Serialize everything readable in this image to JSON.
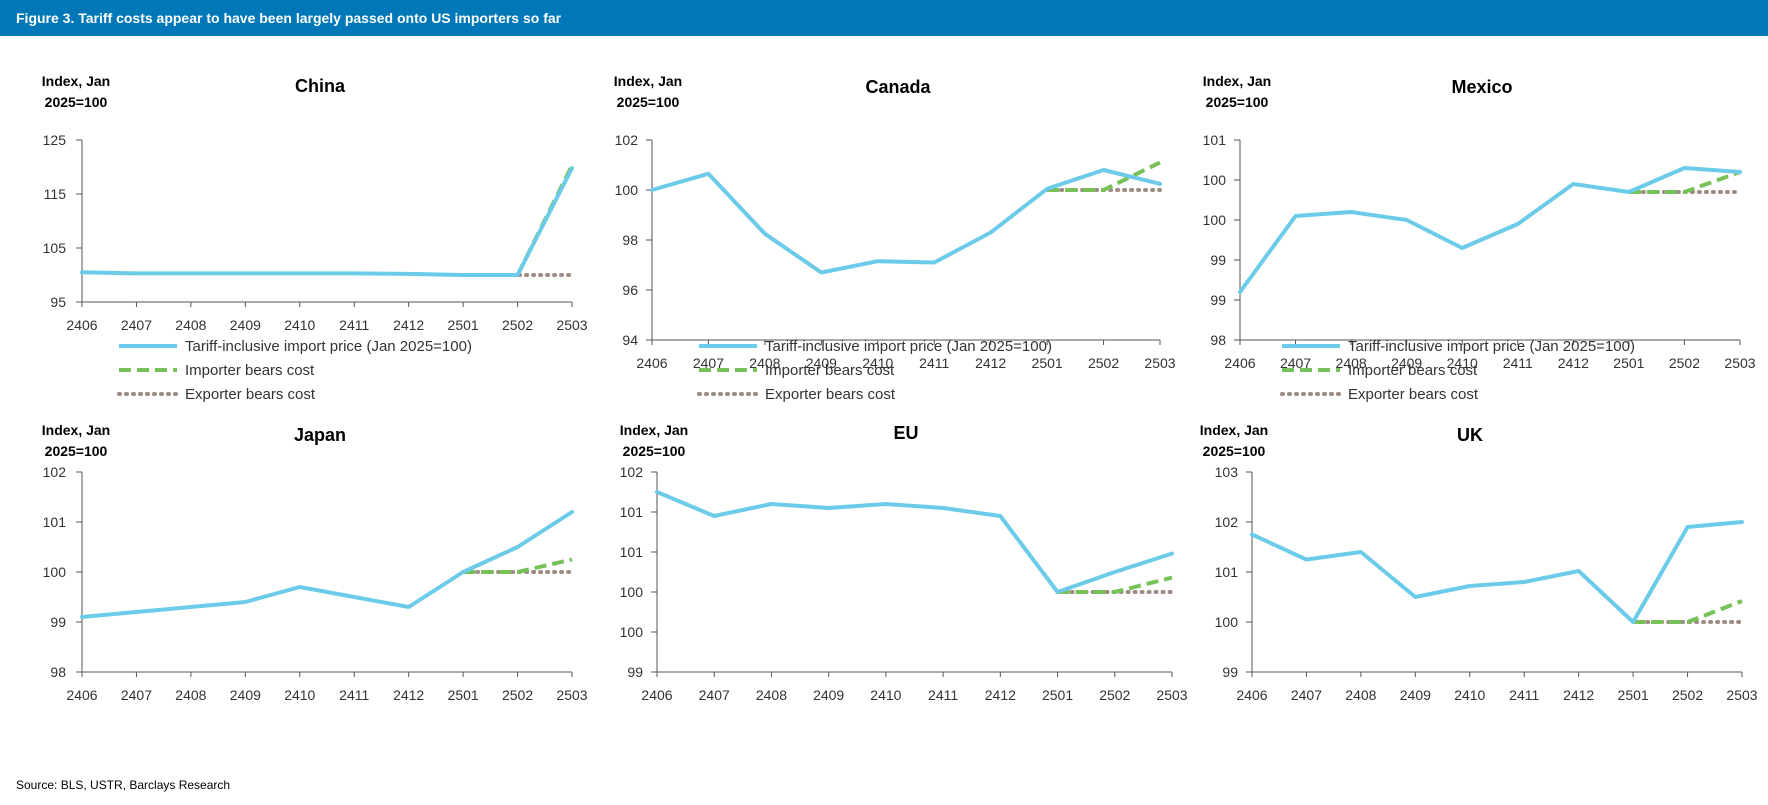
{
  "figure_title": "Figure 3. Tariff costs appear to have been largely passed onto US importers so far",
  "source": "Source: BLS, USTR, Barclays Research",
  "colors": {
    "header": "#0077b6",
    "tariff": "#6ccbe8",
    "importer": "#77c159",
    "exporter": "#9e8c84",
    "axis": "#555555"
  },
  "legend": [
    "Tariff-inclusive import price (Jan 2025=100)",
    "Importer bears cost",
    "Exporter bears cost"
  ],
  "chart_data": [
    {
      "type": "line",
      "title": "China",
      "ylabel_line1": "Index, Jan",
      "ylabel_line2": "2025=100",
      "categories": [
        "2406",
        "2407",
        "2408",
        "2409",
        "2410",
        "2411",
        "2412",
        "2501",
        "2502",
        "2503"
      ],
      "yticks": [
        "95",
        "105",
        "115",
        "125"
      ],
      "ylim": [
        95,
        125
      ],
      "series": [
        {
          "name": "Tariff-inclusive import price (Jan 2025=100)",
          "x": [
            "2406",
            "2407",
            "2408",
            "2409",
            "2410",
            "2411",
            "2412",
            "2501",
            "2502",
            "2503"
          ],
          "values": [
            100.5,
            100.3,
            100.3,
            100.3,
            100.3,
            100.3,
            100.2,
            100.0,
            100.0,
            119.8
          ]
        },
        {
          "name": "Importer bears cost",
          "x": [
            "2501",
            "2502",
            "2503"
          ],
          "values": [
            100.0,
            100.0,
            120.3
          ]
        },
        {
          "name": "Exporter bears cost",
          "x": [
            "2501",
            "2502",
            "2503"
          ],
          "values": [
            100.0,
            100.0,
            100.0
          ]
        }
      ]
    },
    {
      "type": "line",
      "title": "Canada",
      "ylabel_line1": "Index, Jan",
      "ylabel_line2": "2025=100",
      "categories": [
        "2406",
        "2407",
        "2408",
        "2409",
        "2410",
        "2411",
        "2412",
        "2501",
        "2502",
        "2503"
      ],
      "yticks": [
        "94",
        "96",
        "98",
        "100",
        "102"
      ],
      "ylim": [
        94,
        102
      ],
      "series": [
        {
          "name": "Tariff-inclusive import price (Jan 2025=100)",
          "x": [
            "2406",
            "2407",
            "2408",
            "2409",
            "2410",
            "2411",
            "2412",
            "2501",
            "2502",
            "2503"
          ],
          "values": [
            100.0,
            100.65,
            98.25,
            96.7,
            97.15,
            97.1,
            98.3,
            100.05,
            100.8,
            100.25
          ]
        },
        {
          "name": "Importer bears cost",
          "x": [
            "2501",
            "2502",
            "2503"
          ],
          "values": [
            100.0,
            100.0,
            101.1
          ]
        },
        {
          "name": "Exporter bears cost",
          "x": [
            "2501",
            "2502",
            "2503"
          ],
          "values": [
            100.0,
            100.0,
            100.0
          ]
        }
      ]
    },
    {
      "type": "line",
      "title": "Mexico",
      "ylabel_line1": "Index, Jan",
      "ylabel_line2": "2025=100",
      "categories": [
        "2406",
        "2407",
        "2408",
        "2409",
        "2410",
        "2411",
        "2412",
        "2501",
        "2502",
        "2503"
      ],
      "yticks": [
        "98",
        "99",
        "99",
        "100",
        "100",
        "101"
      ],
      "ylim": [
        98,
        100.5
      ],
      "series": [
        {
          "name": "Tariff-inclusive import price (Jan 2025=100)",
          "x": [
            "2406",
            "2407",
            "2408",
            "2409",
            "2410",
            "2411",
            "2412",
            "2501",
            "2502",
            "2503"
          ],
          "values": [
            98.6,
            99.55,
            99.6,
            99.5,
            99.15,
            99.45,
            99.95,
            99.85,
            100.15,
            100.1
          ]
        },
        {
          "name": "Importer bears cost",
          "x": [
            "2501",
            "2502",
            "2503"
          ],
          "values": [
            99.85,
            99.85,
            100.1
          ]
        },
        {
          "name": "Exporter bears cost",
          "x": [
            "2501",
            "2502",
            "2503"
          ],
          "values": [
            99.85,
            99.85,
            99.85
          ]
        }
      ]
    },
    {
      "type": "line",
      "title": "Japan",
      "ylabel_line1": "Index, Jan",
      "ylabel_line2": "2025=100",
      "categories": [
        "2406",
        "2407",
        "2408",
        "2409",
        "2410",
        "2411",
        "2412",
        "2501",
        "2502",
        "2503"
      ],
      "yticks": [
        "98",
        "99",
        "100",
        "101",
        "102"
      ],
      "ylim": [
        98,
        102
      ],
      "series": [
        {
          "name": "Tariff-inclusive import price (Jan 2025=100)",
          "x": [
            "2406",
            "2407",
            "2408",
            "2409",
            "2410",
            "2411",
            "2412",
            "2501",
            "2502",
            "2503"
          ],
          "values": [
            99.1,
            99.2,
            99.3,
            99.4,
            99.7,
            99.5,
            99.3,
            100.0,
            100.5,
            101.2
          ]
        },
        {
          "name": "Importer bears cost",
          "x": [
            "2501",
            "2502",
            "2503"
          ],
          "values": [
            100.0,
            100.0,
            100.25
          ]
        },
        {
          "name": "Exporter bears cost",
          "x": [
            "2501",
            "2502",
            "2503"
          ],
          "values": [
            100.0,
            100.0,
            100.0
          ]
        }
      ]
    },
    {
      "type": "line",
      "title": "EU",
      "ylabel_line1": "Index, Jan",
      "ylabel_line2": "2025=100",
      "categories": [
        "2406",
        "2407",
        "2408",
        "2409",
        "2410",
        "2411",
        "2412",
        "2501",
        "2502",
        "2503"
      ],
      "yticks": [
        "99",
        "100",
        "100",
        "101",
        "101",
        "102"
      ],
      "ylim": [
        99.5,
        102
      ],
      "series": [
        {
          "name": "Tariff-inclusive import price (Jan 2025=100)",
          "x": [
            "2406",
            "2407",
            "2408",
            "2409",
            "2410",
            "2411",
            "2412",
            "2501",
            "2502",
            "2503"
          ],
          "values": [
            101.75,
            101.45,
            101.6,
            101.55,
            101.6,
            101.55,
            101.45,
            100.5,
            100.75,
            100.98
          ]
        },
        {
          "name": "Importer bears cost",
          "x": [
            "2501",
            "2502",
            "2503"
          ],
          "values": [
            100.5,
            100.5,
            100.68
          ]
        },
        {
          "name": "Exporter bears cost",
          "x": [
            "2501",
            "2502",
            "2503"
          ],
          "values": [
            100.5,
            100.5,
            100.5
          ]
        }
      ]
    },
    {
      "type": "line",
      "title": "UK",
      "ylabel_line1": "Index, Jan",
      "ylabel_line2": "2025=100",
      "categories": [
        "2406",
        "2407",
        "2408",
        "2409",
        "2410",
        "2411",
        "2412",
        "2501",
        "2502",
        "2503"
      ],
      "yticks": [
        "99",
        "100",
        "101",
        "102",
        "103"
      ],
      "ylim": [
        99,
        103
      ],
      "series": [
        {
          "name": "Tariff-inclusive import price (Jan 2025=100)",
          "x": [
            "2406",
            "2407",
            "2408",
            "2409",
            "2410",
            "2411",
            "2412",
            "2501",
            "2502",
            "2503"
          ],
          "values": [
            101.75,
            101.25,
            101.4,
            100.5,
            100.72,
            100.8,
            101.02,
            100.0,
            101.9,
            102.0
          ]
        },
        {
          "name": "Importer bears cost",
          "x": [
            "2501",
            "2502",
            "2503"
          ],
          "values": [
            100.0,
            100.0,
            100.42
          ]
        },
        {
          "name": "Exporter bears cost",
          "x": [
            "2501",
            "2502",
            "2503"
          ],
          "values": [
            100.0,
            100.0,
            100.0
          ]
        }
      ]
    }
  ]
}
